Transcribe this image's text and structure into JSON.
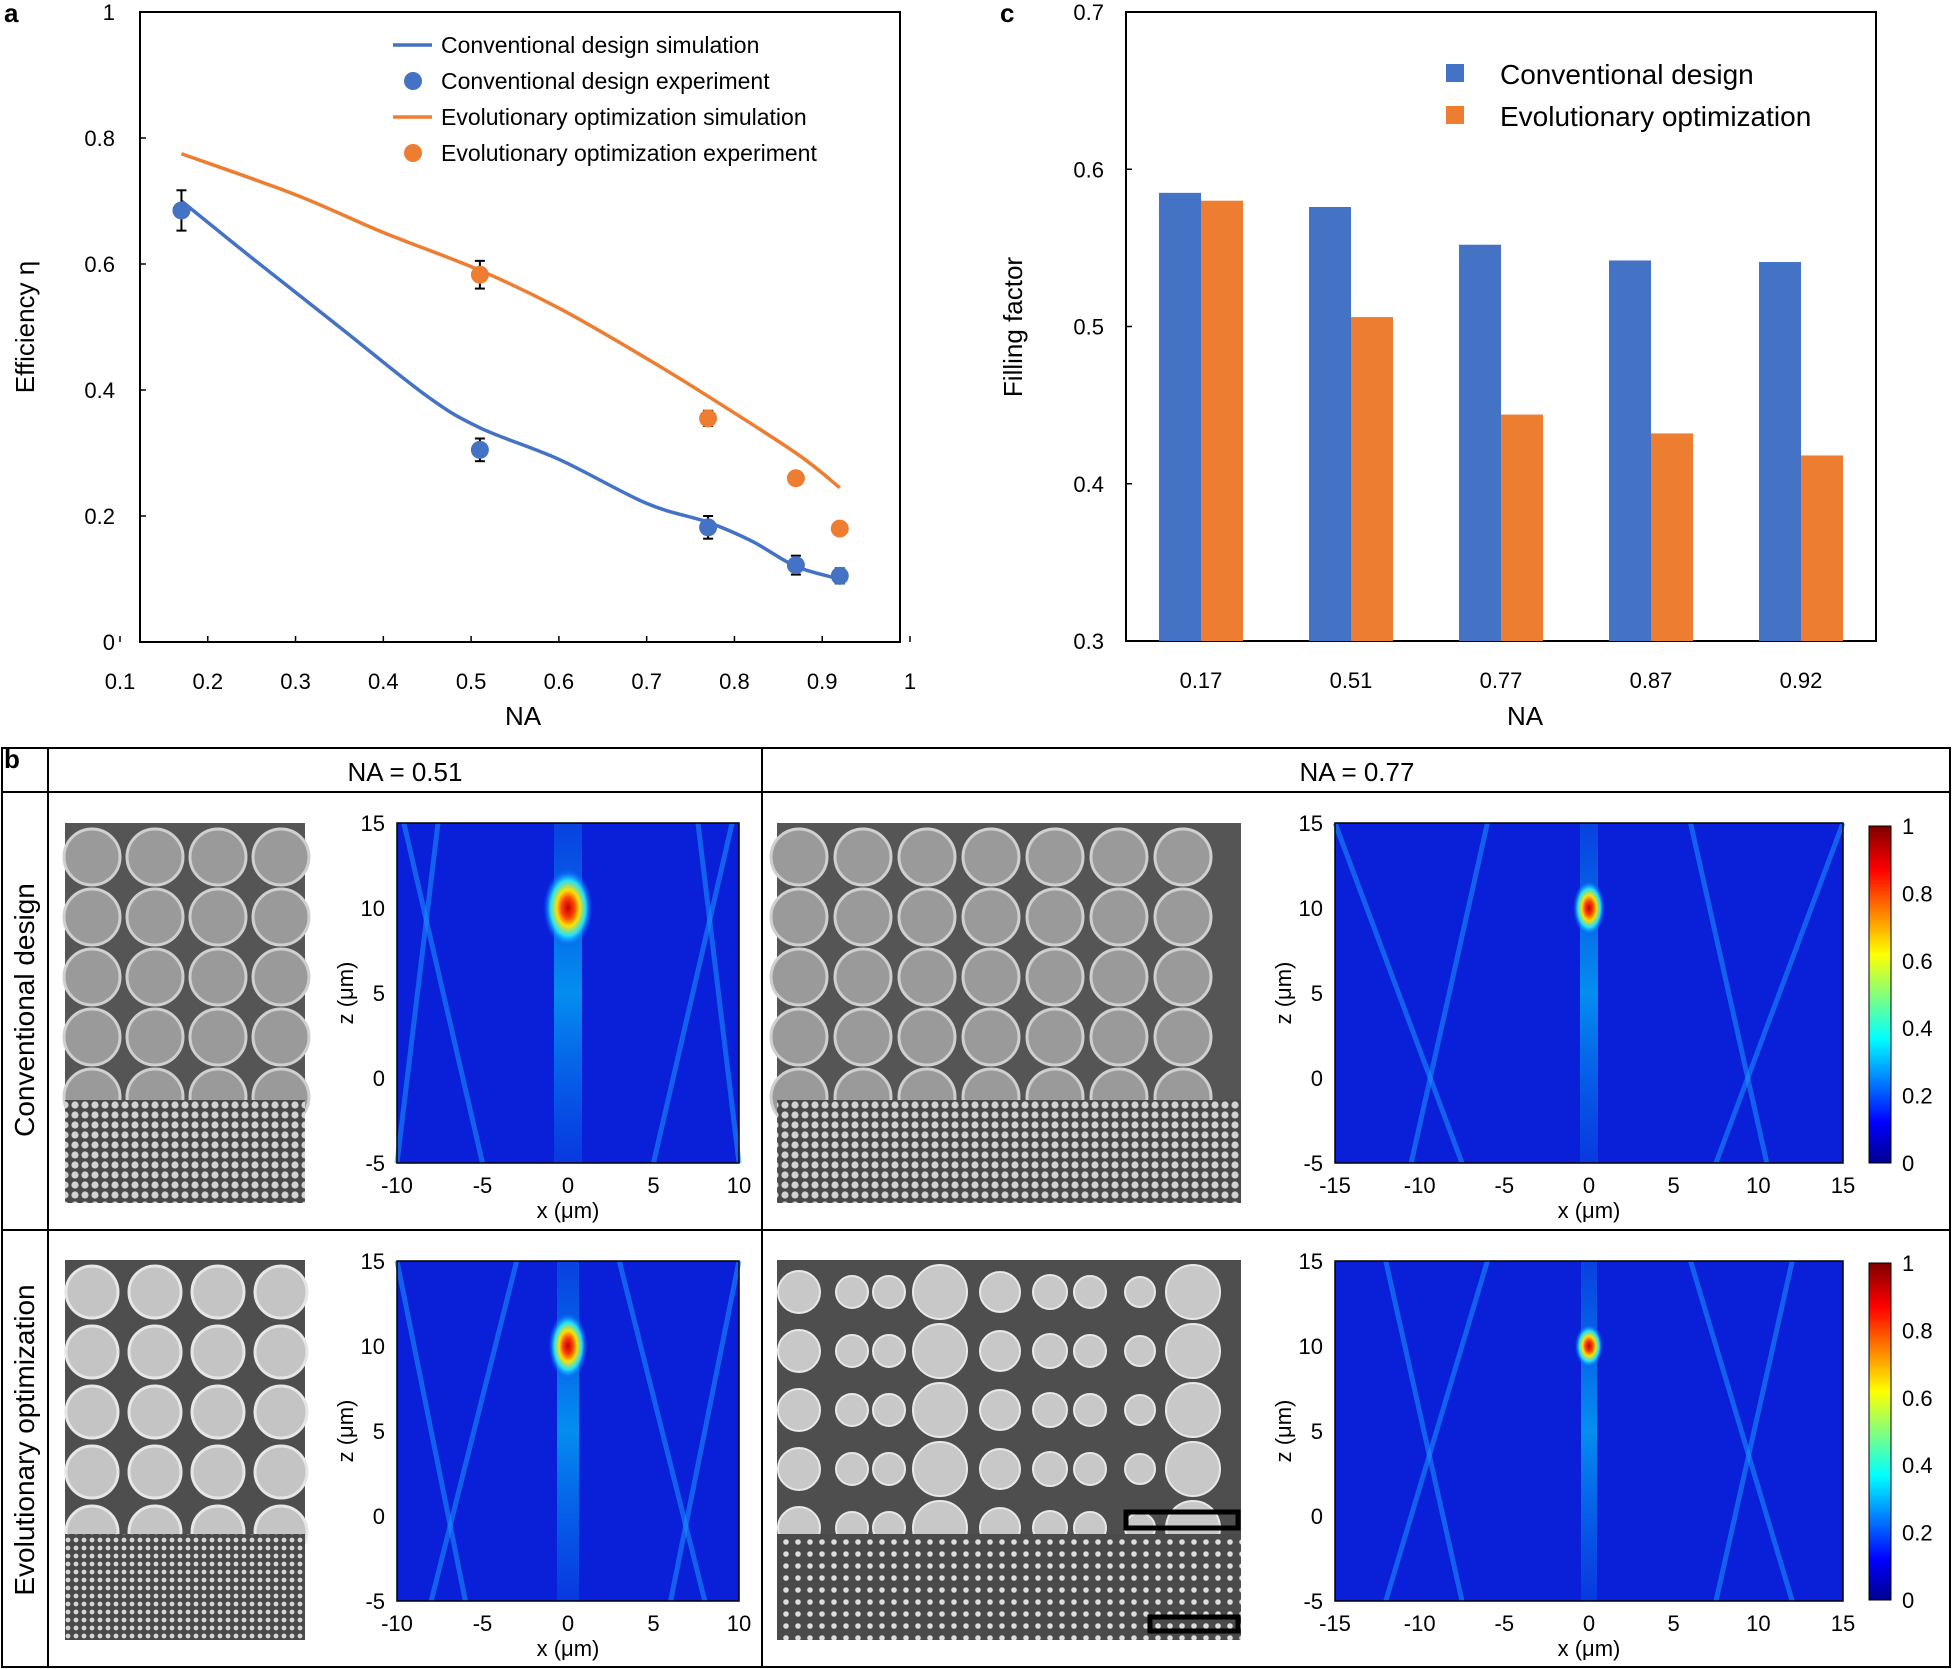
{
  "panel_labels": {
    "a": "a",
    "b": "b",
    "c": "c"
  },
  "colors": {
    "blue": "#4472C4",
    "orange": "#ED7D31"
  },
  "chart_data": [
    {
      "id": "a",
      "type": "line",
      "xlabel": "NA",
      "ylabel": "Efficiency η",
      "xlim": [
        0.1,
        1
      ],
      "ylim": [
        0,
        1
      ],
      "xticks": [
        0.1,
        0.2,
        0.3,
        0.4,
        0.5,
        0.6,
        0.7,
        0.8,
        0.9,
        1
      ],
      "xtick_labels": [
        "0.1",
        "0.2",
        "0.3",
        "0.4",
        "0.5",
        "0.6",
        "0.7",
        "0.8",
        "0.9",
        "1"
      ],
      "yticks": [
        0,
        0.2,
        0.4,
        0.6,
        0.8,
        1
      ],
      "ytick_labels": [
        "0",
        "0.2",
        "0.4",
        "0.6",
        "0.8",
        "1"
      ],
      "legend_position": "top-right",
      "series": [
        {
          "name": "Conventional design simulation",
          "kind": "line",
          "color": "#4472C4",
          "x": [
            0.17,
            0.25,
            0.35,
            0.45,
            0.51,
            0.6,
            0.7,
            0.77,
            0.82,
            0.87,
            0.92
          ],
          "y": [
            0.7,
            0.61,
            0.5,
            0.39,
            0.34,
            0.29,
            0.22,
            0.19,
            0.16,
            0.12,
            0.1
          ]
        },
        {
          "name": "Conventional design experiment",
          "kind": "points",
          "color": "#4472C4",
          "x": [
            0.17,
            0.51,
            0.77,
            0.87,
            0.92
          ],
          "y": [
            0.685,
            0.305,
            0.182,
            0.122,
            0.105
          ],
          "err": [
            0.032,
            0.018,
            0.018,
            0.015,
            0.012
          ]
        },
        {
          "name": "Evolutionary optimization simulation",
          "kind": "line",
          "color": "#ED7D31",
          "x": [
            0.17,
            0.3,
            0.4,
            0.51,
            0.6,
            0.7,
            0.77,
            0.87,
            0.92
          ],
          "y": [
            0.775,
            0.71,
            0.65,
            0.59,
            0.53,
            0.45,
            0.39,
            0.3,
            0.245
          ]
        },
        {
          "name": "Evolutionary optimization experiment",
          "kind": "points",
          "color": "#ED7D31",
          "x": [
            0.51,
            0.77,
            0.87,
            0.92
          ],
          "y": [
            0.583,
            0.355,
            0.26,
            0.18
          ],
          "err": [
            0.022,
            0.012,
            0.01,
            0
          ]
        }
      ]
    },
    {
      "id": "c",
      "type": "bar",
      "xlabel": "NA",
      "ylabel": "Filling factor",
      "ylim": [
        0.3,
        0.7
      ],
      "yticks": [
        0.3,
        0.4,
        0.5,
        0.6,
        0.7
      ],
      "ytick_labels": [
        "0.3",
        "0.4",
        "0.5",
        "0.6",
        "0.7"
      ],
      "categories": [
        "0.17",
        "0.51",
        "0.77",
        "0.87",
        "0.92"
      ],
      "legend_position": "top-right",
      "series": [
        {
          "name": "Conventional design",
          "color": "#4472C4",
          "values": [
            0.585,
            0.576,
            0.552,
            0.542,
            0.541
          ]
        },
        {
          "name": "Evolutionary optimization",
          "color": "#ED7D31",
          "values": [
            0.58,
            0.506,
            0.444,
            0.432,
            0.418
          ]
        }
      ]
    },
    {
      "id": "b",
      "type": "heatmap",
      "column_headers": [
        "NA = 0.51",
        "NA = 0.77"
      ],
      "row_headers": [
        "Conventional design",
        "Evolutionary optimization"
      ],
      "xlabel": "x (μm)",
      "ylabel": "z (μm)",
      "z_ticks": [
        "15",
        "10",
        "5",
        "0",
        "-5"
      ],
      "x_ticks_051": [
        "-10",
        "-5",
        "0",
        "5",
        "10"
      ],
      "x_ticks_077": [
        "-15",
        "-10",
        "-5",
        "0",
        "5",
        "10",
        "15"
      ],
      "colorbar_ticks": [
        "1",
        "0.8",
        "0.6",
        "0.4",
        "0.2",
        "0"
      ],
      "focus_z": 10
    }
  ]
}
